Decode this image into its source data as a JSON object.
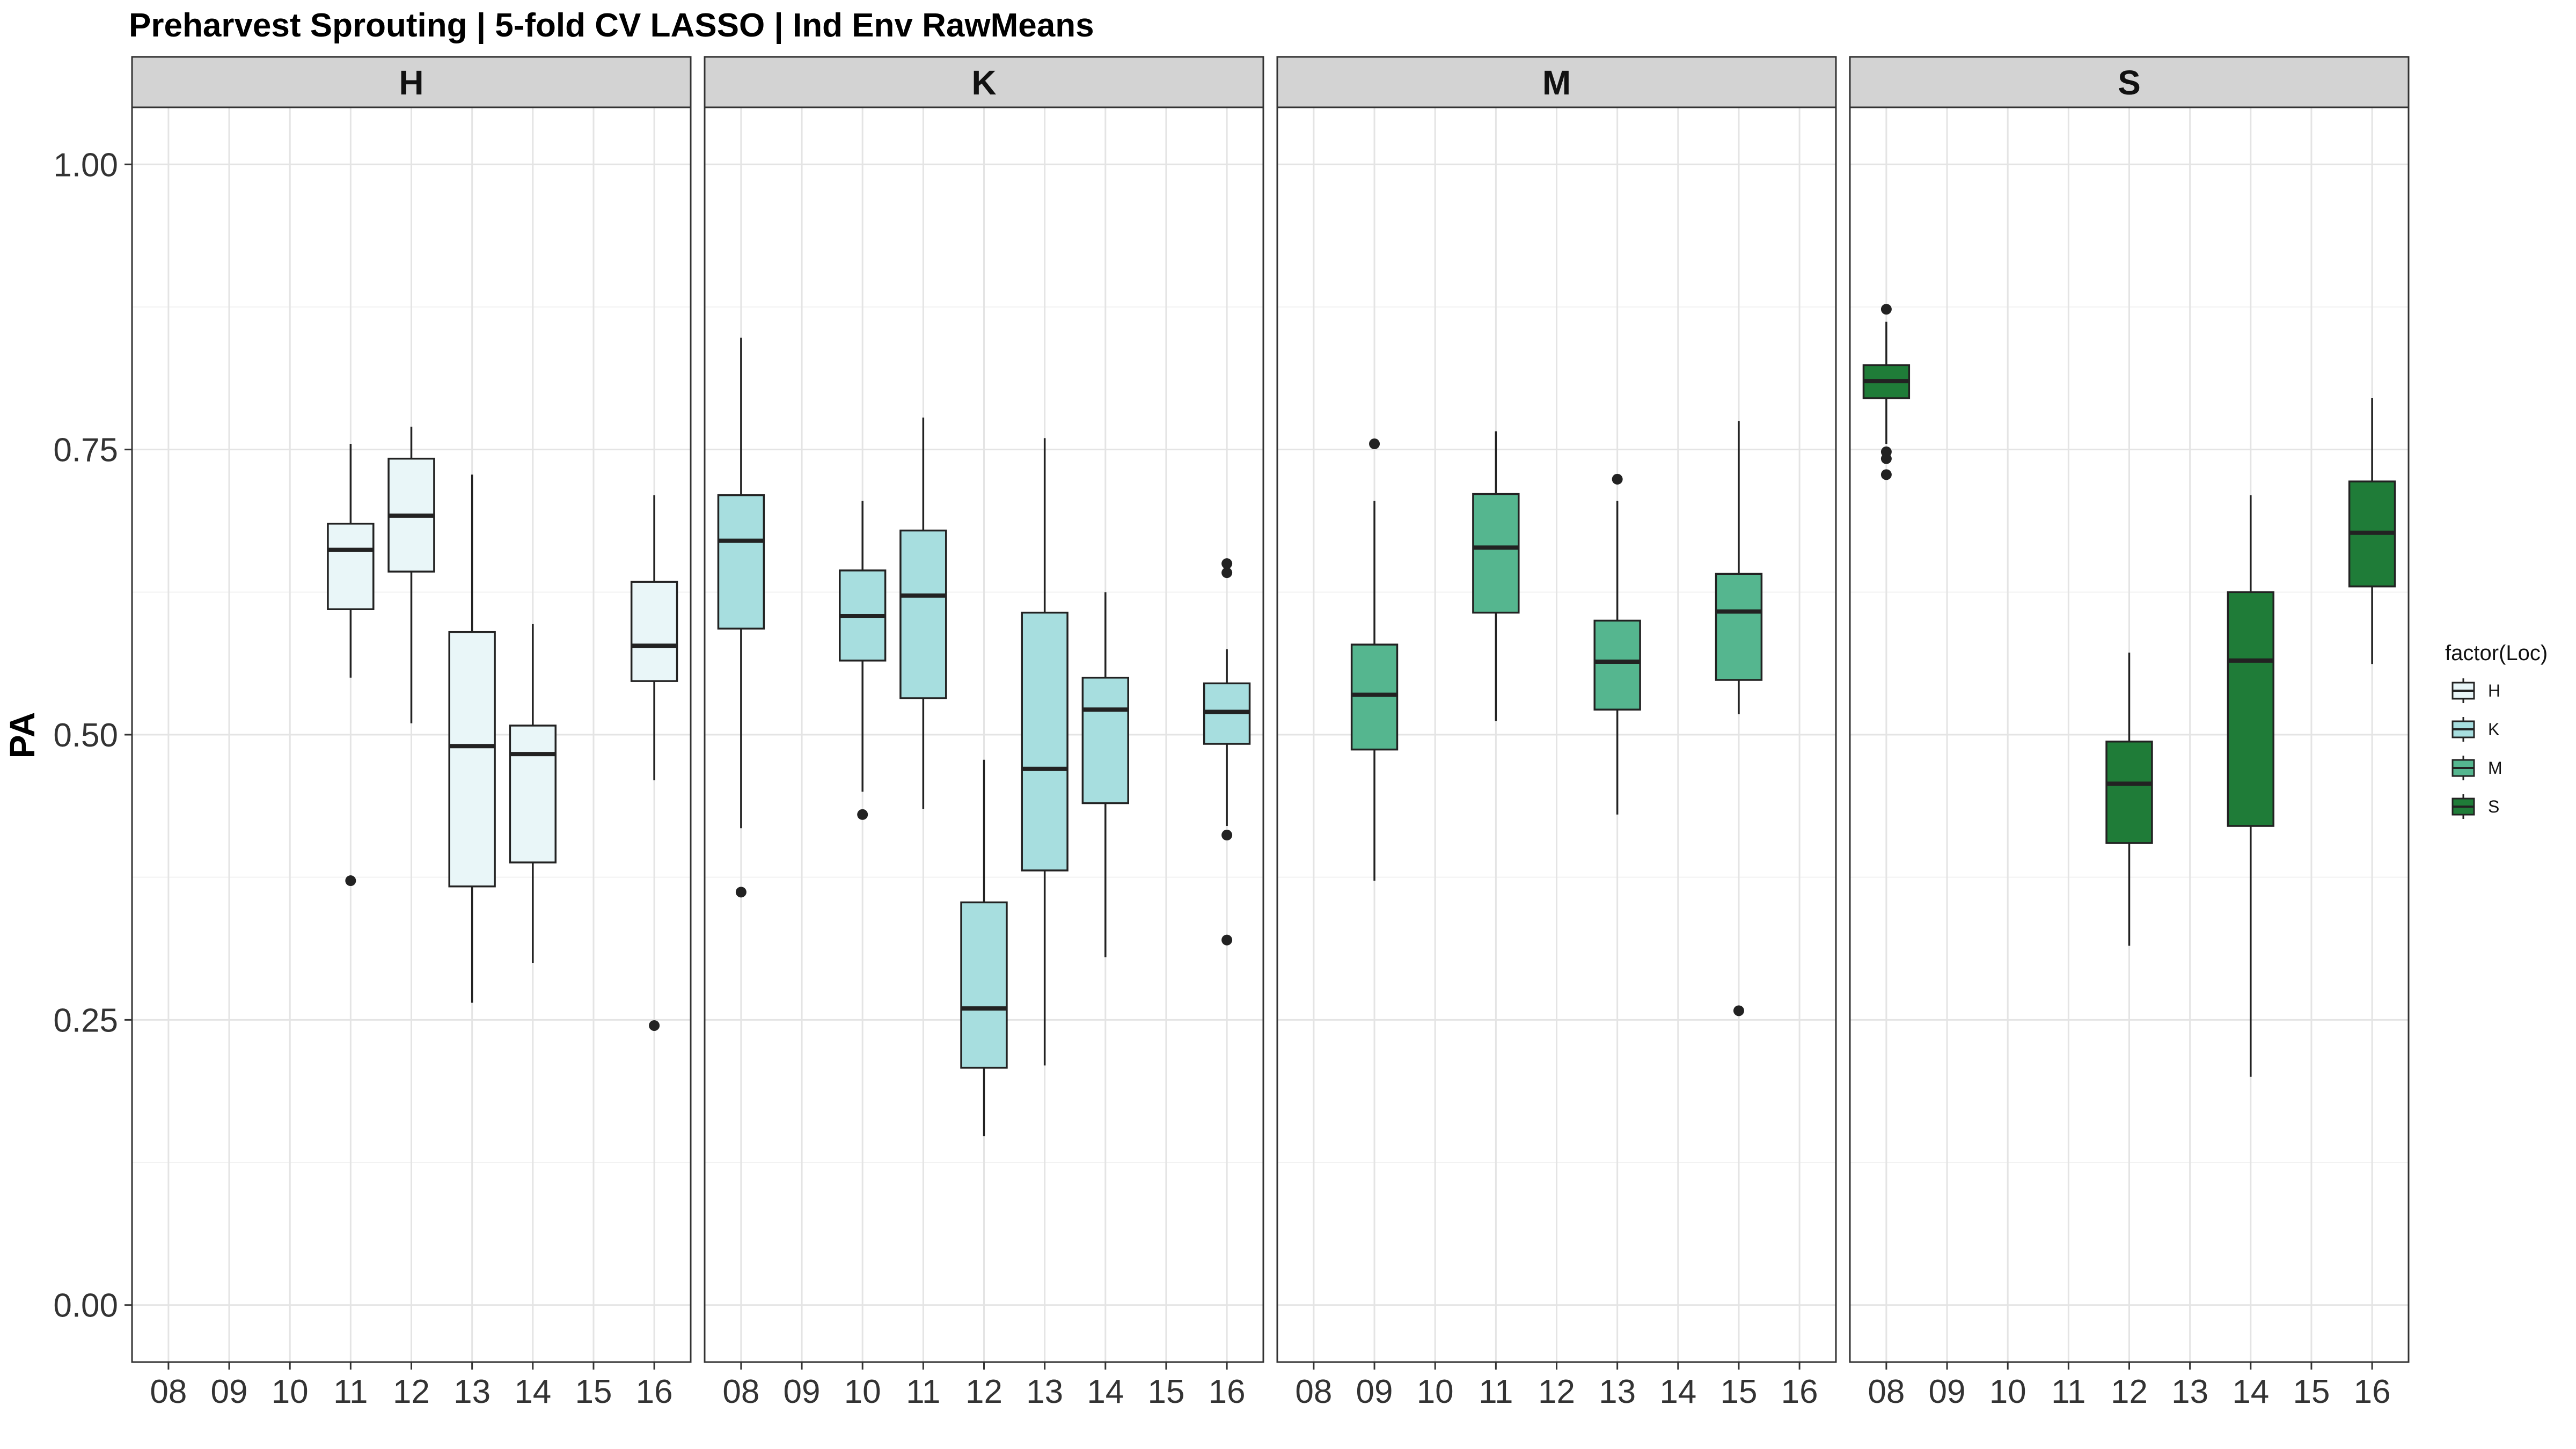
{
  "chart_data": {
    "type": "boxplot",
    "title": "Preharvest Sprouting | 5-fold CV  LASSO | Ind Env RawMeans",
    "ylabel": "PA",
    "xlabel": "",
    "ylim": [
      -0.05,
      1.05
    ],
    "yticks": [
      "0.00",
      "0.25",
      "0.50",
      "0.75",
      "1.00"
    ],
    "categories": [
      "08",
      "09",
      "10",
      "11",
      "12",
      "13",
      "14",
      "15",
      "16"
    ],
    "grid": true,
    "legend": {
      "title": "factor(Loc)",
      "position": "right",
      "entries": [
        {
          "label": "H",
          "color": "#e9f6f8"
        },
        {
          "label": "K",
          "color": "#a7dedf"
        },
        {
          "label": "M",
          "color": "#55b68f"
        },
        {
          "label": "S",
          "color": "#1f7c38"
        }
      ]
    },
    "facets": [
      {
        "label": "H",
        "color": "#e9f6f8",
        "boxes": [
          {
            "x": "11",
            "lower_whisker": 0.55,
            "q1": 0.61,
            "median": 0.662,
            "q3": 0.685,
            "upper_whisker": 0.755,
            "outliers": [
              0.372
            ]
          },
          {
            "x": "12",
            "lower_whisker": 0.51,
            "q1": 0.643,
            "median": 0.692,
            "q3": 0.742,
            "upper_whisker": 0.77,
            "outliers": []
          },
          {
            "x": "13",
            "lower_whisker": 0.265,
            "q1": 0.367,
            "median": 0.49,
            "q3": 0.59,
            "upper_whisker": 0.728,
            "outliers": []
          },
          {
            "x": "14",
            "lower_whisker": 0.3,
            "q1": 0.388,
            "median": 0.483,
            "q3": 0.508,
            "upper_whisker": 0.597,
            "outliers": []
          },
          {
            "x": "16",
            "lower_whisker": 0.46,
            "q1": 0.547,
            "median": 0.578,
            "q3": 0.634,
            "upper_whisker": 0.71,
            "outliers": [
              0.245
            ]
          }
        ]
      },
      {
        "label": "K",
        "color": "#a7dedf",
        "boxes": [
          {
            "x": "08",
            "lower_whisker": 0.418,
            "q1": 0.593,
            "median": 0.67,
            "q3": 0.71,
            "upper_whisker": 0.848,
            "outliers": [
              0.362
            ]
          },
          {
            "x": "10",
            "lower_whisker": 0.45,
            "q1": 0.565,
            "median": 0.604,
            "q3": 0.644,
            "upper_whisker": 0.705,
            "outliers": [
              0.43
            ]
          },
          {
            "x": "11",
            "lower_whisker": 0.435,
            "q1": 0.532,
            "median": 0.622,
            "q3": 0.679,
            "upper_whisker": 0.778,
            "outliers": []
          },
          {
            "x": "12",
            "lower_whisker": 0.148,
            "q1": 0.208,
            "median": 0.26,
            "q3": 0.353,
            "upper_whisker": 0.478,
            "outliers": []
          },
          {
            "x": "13",
            "lower_whisker": 0.21,
            "q1": 0.381,
            "median": 0.47,
            "q3": 0.607,
            "upper_whisker": 0.76,
            "outliers": []
          },
          {
            "x": "14",
            "lower_whisker": 0.305,
            "q1": 0.44,
            "median": 0.522,
            "q3": 0.55,
            "upper_whisker": 0.625,
            "outliers": []
          },
          {
            "x": "16",
            "lower_whisker": 0.42,
            "q1": 0.492,
            "median": 0.52,
            "q3": 0.545,
            "upper_whisker": 0.575,
            "outliers": [
              0.65,
              0.642,
              0.412,
              0.32
            ]
          }
        ]
      },
      {
        "label": "M",
        "color": "#55b68f",
        "boxes": [
          {
            "x": "09",
            "lower_whisker": 0.372,
            "q1": 0.487,
            "median": 0.535,
            "q3": 0.579,
            "upper_whisker": 0.705,
            "outliers": [
              0.755
            ]
          },
          {
            "x": "11",
            "lower_whisker": 0.512,
            "q1": 0.607,
            "median": 0.664,
            "q3": 0.711,
            "upper_whisker": 0.766,
            "outliers": []
          },
          {
            "x": "13",
            "lower_whisker": 0.43,
            "q1": 0.522,
            "median": 0.564,
            "q3": 0.6,
            "upper_whisker": 0.705,
            "outliers": [
              0.724
            ]
          },
          {
            "x": "15",
            "lower_whisker": 0.518,
            "q1": 0.548,
            "median": 0.608,
            "q3": 0.641,
            "upper_whisker": 0.775,
            "outliers": [
              0.258
            ]
          }
        ]
      },
      {
        "label": "S",
        "color": "#1f7c38",
        "boxes": [
          {
            "x": "08",
            "lower_whisker": 0.755,
            "q1": 0.795,
            "median": 0.81,
            "q3": 0.824,
            "upper_whisker": 0.862,
            "outliers": [
              0.873,
              0.748,
              0.742,
              0.728
            ]
          },
          {
            "x": "12",
            "lower_whisker": 0.315,
            "q1": 0.405,
            "median": 0.457,
            "q3": 0.494,
            "upper_whisker": 0.572,
            "outliers": []
          },
          {
            "x": "14",
            "lower_whisker": 0.2,
            "q1": 0.42,
            "median": 0.565,
            "q3": 0.625,
            "upper_whisker": 0.71,
            "outliers": []
          },
          {
            "x": "16",
            "lower_whisker": 0.562,
            "q1": 0.63,
            "median": 0.677,
            "q3": 0.722,
            "upper_whisker": 0.795,
            "outliers": []
          }
        ]
      }
    ]
  }
}
